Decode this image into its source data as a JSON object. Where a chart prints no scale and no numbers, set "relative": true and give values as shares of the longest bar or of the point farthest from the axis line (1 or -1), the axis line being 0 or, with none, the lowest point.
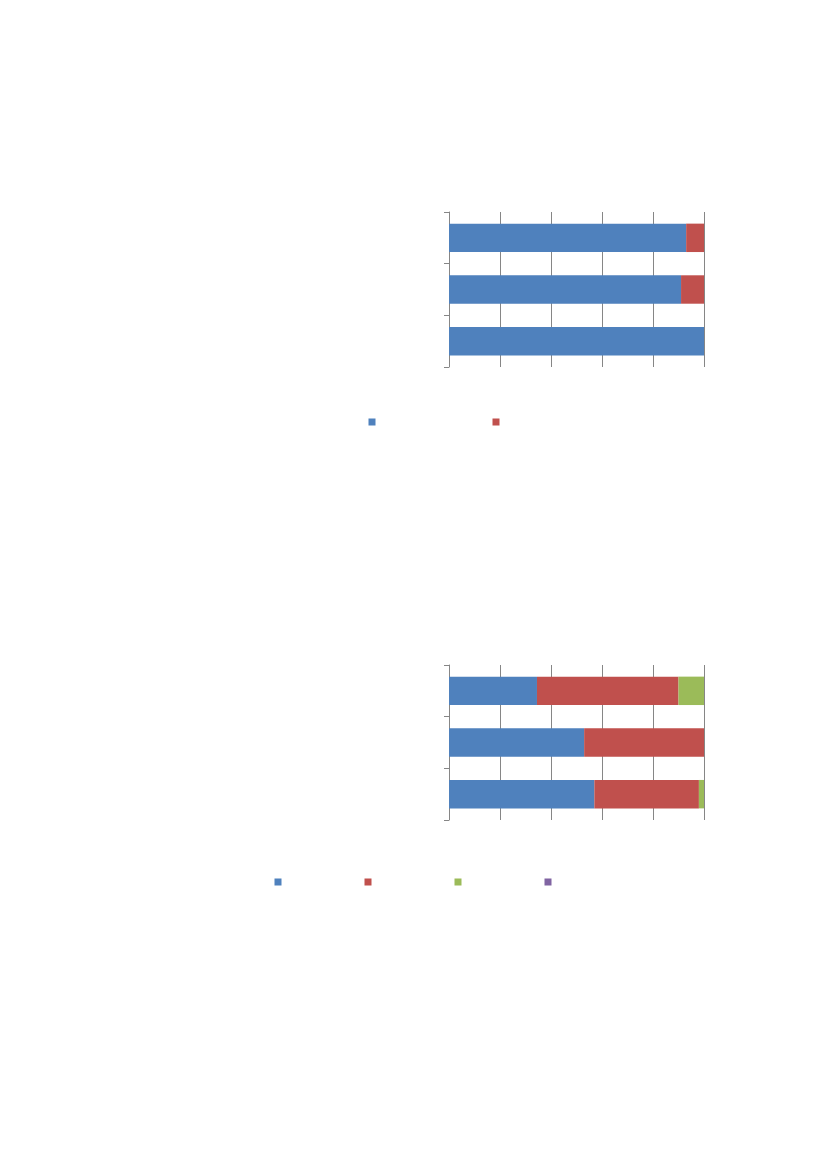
{
  "chart_data": [
    {
      "type": "bar",
      "orientation": "horizontal",
      "stacked": true,
      "relative": true,
      "grid": "x",
      "categories": [
        null,
        null,
        null
      ],
      "series": [
        {
          "color": "#4f81bd",
          "values": [
            0.93,
            0.91,
            1.0
          ]
        },
        {
          "color": "#c0504d",
          "values": [
            0.07,
            0.09,
            0
          ]
        }
      ]
    },
    {
      "type": "bar",
      "orientation": "horizontal",
      "stacked": true,
      "relative": true,
      "grid": "x",
      "categories": [
        null,
        null,
        null
      ],
      "series": [
        {
          "color": "#4f81bd",
          "values": [
            0.345,
            0.53,
            0.57
          ]
        },
        {
          "color": "#c0504d",
          "values": [
            0.555,
            0.47,
            0.41
          ]
        },
        {
          "color": "#9bbb59",
          "values": [
            0.1,
            0,
            0.02
          ]
        },
        {
          "color": "#8064a2",
          "values": [
            0,
            0,
            0
          ]
        }
      ]
    }
  ]
}
